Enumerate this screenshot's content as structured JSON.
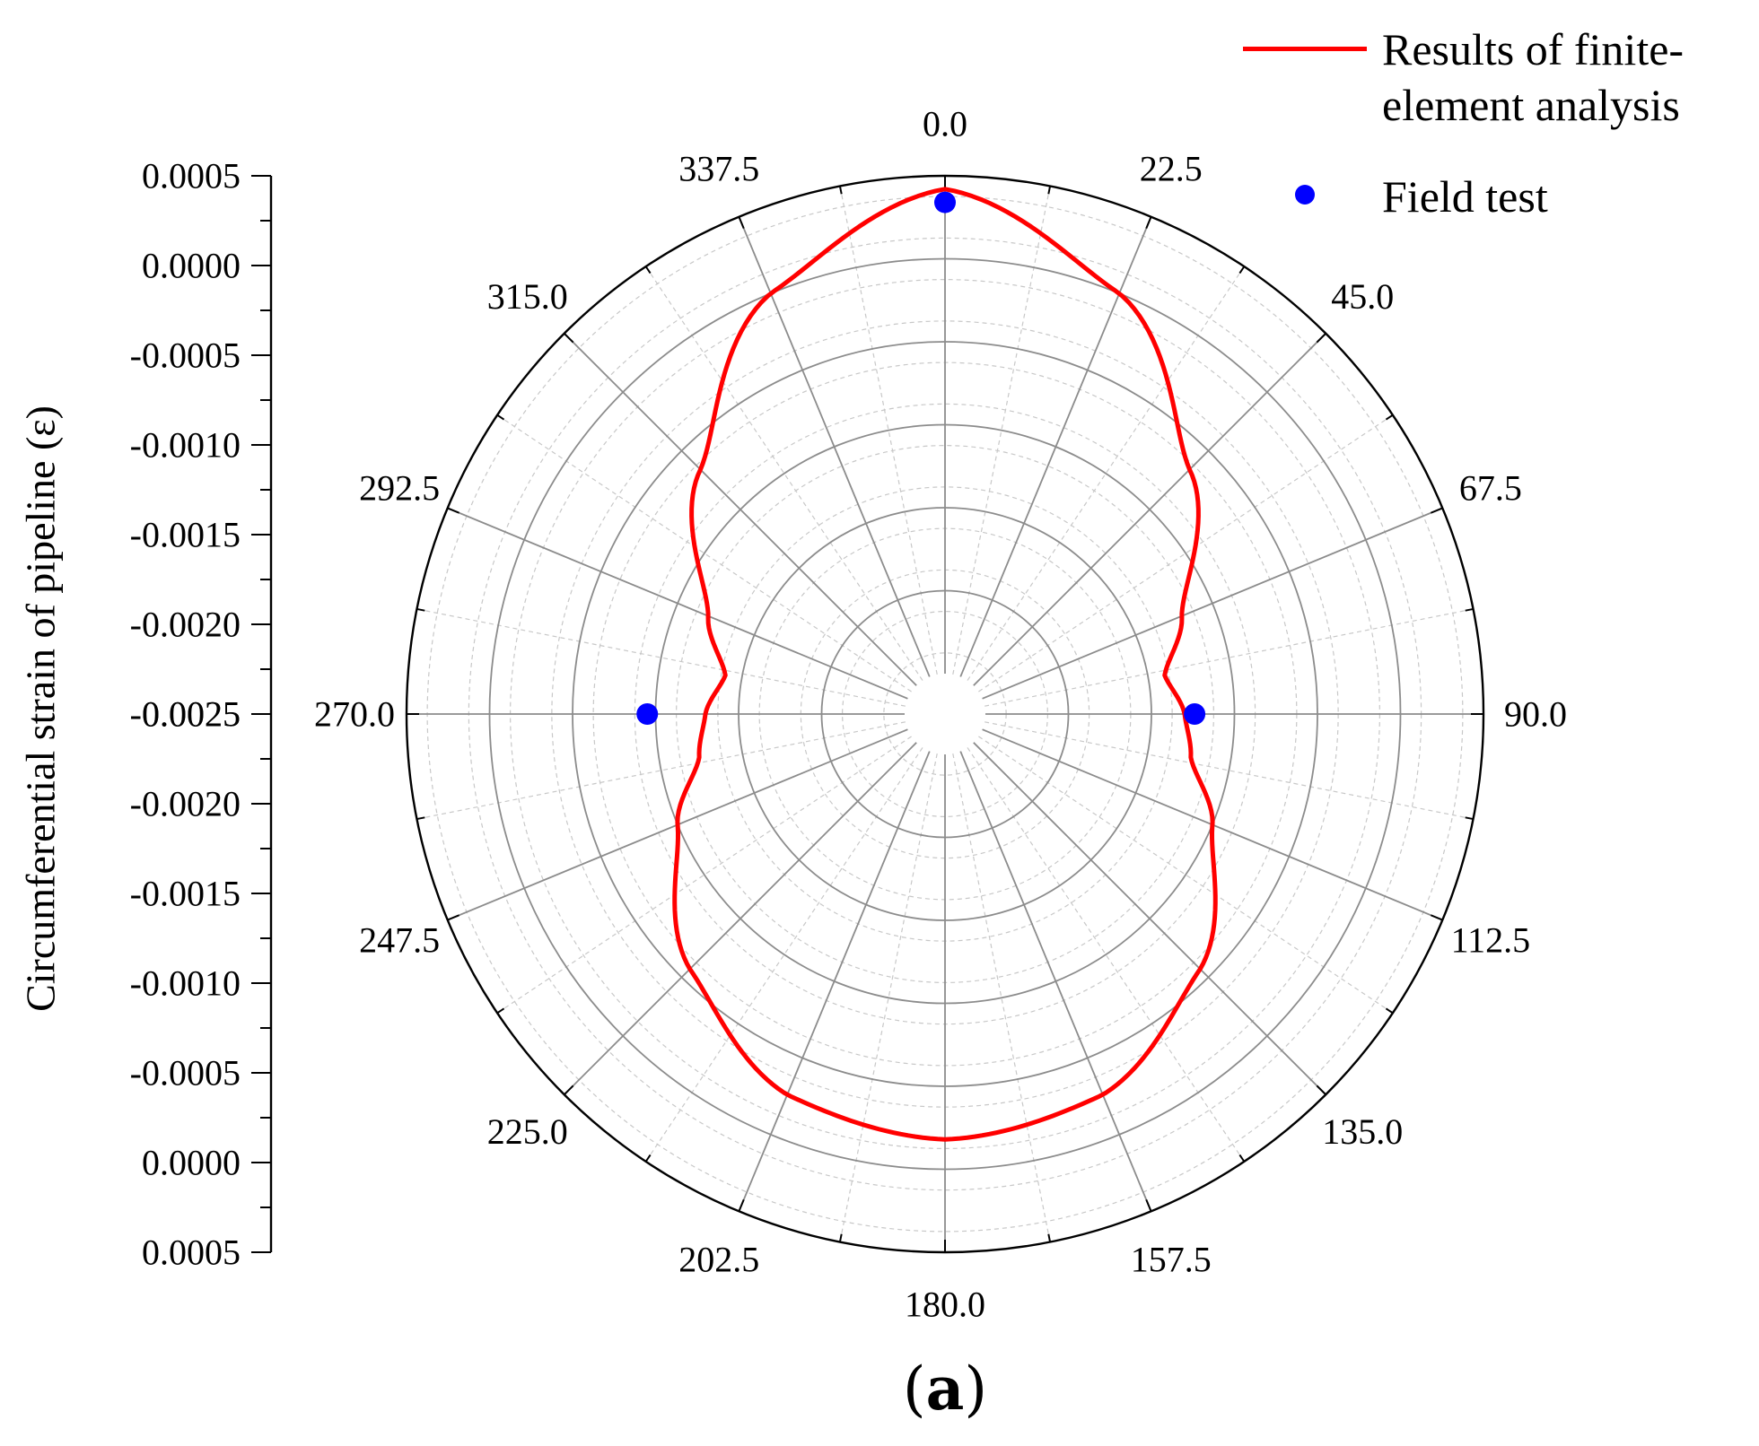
{
  "colors": {
    "fe_line": "#ff0000",
    "field_marker": "#0000ff",
    "axis": "#000000",
    "grid_major": "#8c8c8c",
    "grid_minor": "#c8c8c8"
  },
  "chart_data": {
    "type": "polar",
    "panel_label": "a",
    "ylabel": "Circumferential strain of pipeline (ε)",
    "angle_ticks": [
      "0.0",
      "22.5",
      "45.0",
      "67.5",
      "90.0",
      "112.5",
      "135.0",
      "157.5",
      "180.0",
      "202.5",
      "225.0",
      "247.5",
      "270.0",
      "292.5",
      "315.0",
      "337.5"
    ],
    "radial_tick_labels_upper": [
      "0.0005",
      "0.0000",
      "-0.0005",
      "-0.0010",
      "-0.0015",
      "-0.0020",
      "-0.0025"
    ],
    "radial_tick_labels_lower": [
      "-0.0025",
      "-0.0020",
      "-0.0015",
      "-0.0010",
      "-0.0005",
      "0.0000",
      "0.0005"
    ],
    "rlim": [
      -0.0025,
      0.0005
    ],
    "radial_scale": "linear, -0.0025 at center ring, 0.0005 at outer rim",
    "grid": true,
    "legend_position": "top-right",
    "series": [
      {
        "name": "Results of finite-element analysis",
        "kind": "line",
        "angles": [
          0,
          22.5,
          45,
          67.5,
          80,
          90,
          100,
          112.5,
          135,
          157.5,
          180,
          202.5,
          225,
          247.5,
          260,
          270,
          280,
          292.5,
          315,
          337.5
        ],
        "values": [
          0.00042,
          0.0,
          -0.00066,
          -0.0012,
          -0.0014,
          -0.0013,
          -0.00124,
          -0.001,
          -0.00057,
          -0.00026,
          -0.00018,
          -0.00026,
          -0.00057,
          -0.001,
          -0.00124,
          -0.0013,
          -0.0014,
          -0.0012,
          -0.00066,
          0.0
        ]
      },
      {
        "name": "Field test",
        "kind": "scatter",
        "angles": [
          0,
          90,
          270
        ],
        "values": [
          0.00034,
          -0.00124,
          -0.00095
        ]
      }
    ]
  }
}
